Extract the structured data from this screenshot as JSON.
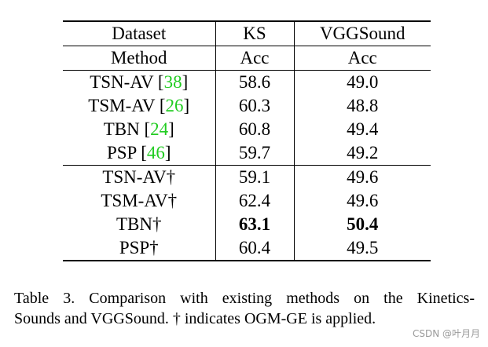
{
  "table": {
    "header1": [
      "Dataset",
      "KS",
      "VGGSound"
    ],
    "header2": [
      "Method",
      "Acc",
      "Acc"
    ],
    "group1": [
      {
        "method": "TSN-AV",
        "cite": "38",
        "ks": "58.6",
        "vgg": "49.0"
      },
      {
        "method": "TSM-AV",
        "cite": "26",
        "ks": "60.3",
        "vgg": "48.8"
      },
      {
        "method": "TBN",
        "cite": "24",
        "ks": "60.8",
        "vgg": "49.4"
      },
      {
        "method": "PSP",
        "cite": "46",
        "ks": "59.7",
        "vgg": "49.2"
      }
    ],
    "group2": [
      {
        "method": "TSN-AV†",
        "ks": "59.1",
        "vgg": "49.6"
      },
      {
        "method": "TSM-AV†",
        "ks": "62.4",
        "vgg": "49.6"
      },
      {
        "method": "TBN†",
        "ks": "63.1",
        "vgg": "50.4"
      },
      {
        "method": "PSP†",
        "ks": "60.4",
        "vgg": "49.5"
      }
    ],
    "cite_color": "#22cc22"
  },
  "caption": {
    "line1": "Table 3.  Comparison with existing methods on the Kinetics-",
    "line2": "Sounds and VGGSound. † indicates OGM-GE is applied."
  },
  "watermark": "CSDN @叶月月"
}
